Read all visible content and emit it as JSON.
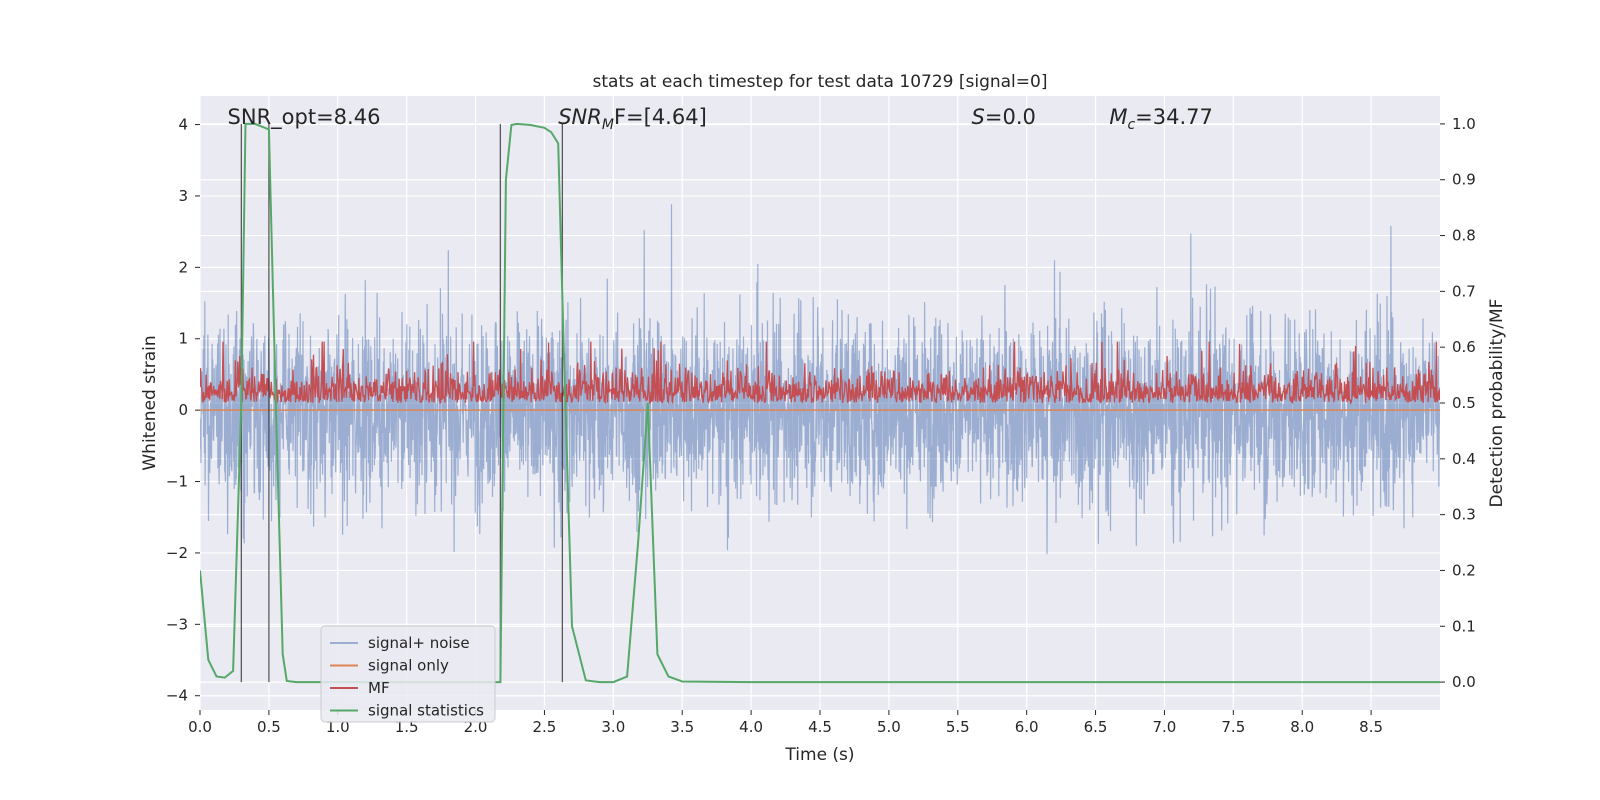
{
  "chart_data": {
    "type": "line",
    "title": "stats at each timestep for test data 10729 [signal=0]",
    "xlabel": "Time (s)",
    "ylabel": "Whitened strain",
    "y2label": "Detection probability/MF",
    "xlim": [
      0,
      9
    ],
    "ylim": [
      -4.2,
      4.4
    ],
    "y2lim": [
      -0.05,
      1.05
    ],
    "xticks": [
      0.0,
      0.5,
      1.0,
      1.5,
      2.0,
      2.5,
      3.0,
      3.5,
      4.0,
      4.5,
      5.0,
      5.5,
      6.0,
      6.5,
      7.0,
      7.5,
      8.0,
      8.5
    ],
    "xtick_labels": [
      "0.0",
      "0.5",
      "1.0",
      "1.5",
      "2.0",
      "2.5",
      "3.0",
      "3.5",
      "4.0",
      "4.5",
      "5.0",
      "5.5",
      "6.0",
      "6.5",
      "7.0",
      "7.5",
      "8.0",
      "8.5"
    ],
    "yticks": [
      4,
      3,
      2,
      1,
      0,
      -1,
      -2,
      -3,
      -4
    ],
    "ytick_labels": [
      "4",
      "3",
      "2",
      "1",
      "0",
      "−1",
      "−2",
      "−3",
      "−4"
    ],
    "y2ticks": [
      1.0,
      0.9,
      0.8,
      0.7,
      0.6,
      0.5,
      0.4,
      0.3,
      0.2,
      0.1,
      0.0
    ],
    "y2tick_labels": [
      "1.0",
      "0.9",
      "0.8",
      "0.7",
      "0.6",
      "0.5",
      "0.4",
      "0.3",
      "0.2",
      "0.1",
      "0.0"
    ],
    "grid": true,
    "background": "#eaeaf2",
    "legend_position": "lower-left",
    "annotations": [
      {
        "text": "SNR_opt=8.46",
        "x": 0.2,
        "y": 4.05
      },
      {
        "text": "SNR_MF=[4.64]",
        "x": 2.6,
        "y": 4.05,
        "italic_base": "SNR",
        "sub": "M",
        "after": "F=[4.64]"
      },
      {
        "text": "S=0.0",
        "x": 5.6,
        "y": 4.05,
        "italic_base": "S",
        "after": "=0.0"
      },
      {
        "text": "M_c=34.77",
        "x": 6.6,
        "y": 4.05,
        "italic_base": "M",
        "sub": "c",
        "after": "=34.77"
      }
    ],
    "vlines": [
      {
        "x": 0.3,
        "ymin": 0.0,
        "ymax": 1.0
      },
      {
        "x": 0.5,
        "ymin": 0.0,
        "ymax": 1.0
      },
      {
        "x": 2.18,
        "ymin": 0.0,
        "ymax": 1.0
      },
      {
        "x": 2.63,
        "ymin": 0.0,
        "ymax": 1.0
      }
    ],
    "series": [
      {
        "name": "signal+ noise",
        "color": "#4c72b0",
        "alpha": 0.5,
        "axis": "left",
        "kind": "noise",
        "samples": 4096,
        "envelope": [
          -3.7,
          4.0
        ],
        "typical_sigma": 0.9
      },
      {
        "name": "signal only",
        "color": "#dd8452",
        "axis": "left",
        "x": [
          0,
          9
        ],
        "y": [
          0.0,
          0.0
        ]
      },
      {
        "name": "MF",
        "color": "#c44e52",
        "axis": "right",
        "kind": "noise",
        "samples": 2000,
        "baseline": 0.5,
        "typical_amplitude": 0.04,
        "max": 0.61
      },
      {
        "name": "signal statistics",
        "color": "#55a868",
        "axis": "right",
        "x": [
          0.0,
          0.06,
          0.12,
          0.18,
          0.24,
          0.3,
          0.33,
          0.36,
          0.4,
          0.45,
          0.5,
          0.55,
          0.6,
          0.63,
          0.7,
          0.8,
          1.0,
          1.5,
          2.0,
          2.1,
          2.18,
          2.22,
          2.26,
          2.3,
          2.4,
          2.5,
          2.55,
          2.6,
          2.64,
          2.7,
          2.8,
          2.9,
          3.0,
          3.1,
          3.18,
          3.25,
          3.32,
          3.4,
          3.5,
          4.0,
          5.0,
          6.0,
          7.0,
          8.0,
          9.0
        ],
        "y": [
          0.2,
          0.04,
          0.01,
          0.008,
          0.02,
          0.5,
          1.0,
          1.0,
          1.0,
          0.995,
          0.99,
          0.5,
          0.05,
          0.002,
          0.0,
          0.0,
          0.0,
          0.0,
          0.0,
          0.0,
          0.0,
          0.9,
          0.998,
          1.0,
          0.998,
          0.993,
          0.985,
          0.965,
          0.6,
          0.1,
          0.003,
          0.0,
          0.0,
          0.01,
          0.25,
          0.5,
          0.05,
          0.01,
          0.001,
          0.0,
          0.0,
          0.0,
          0.0,
          0.0,
          0.0
        ]
      }
    ]
  }
}
